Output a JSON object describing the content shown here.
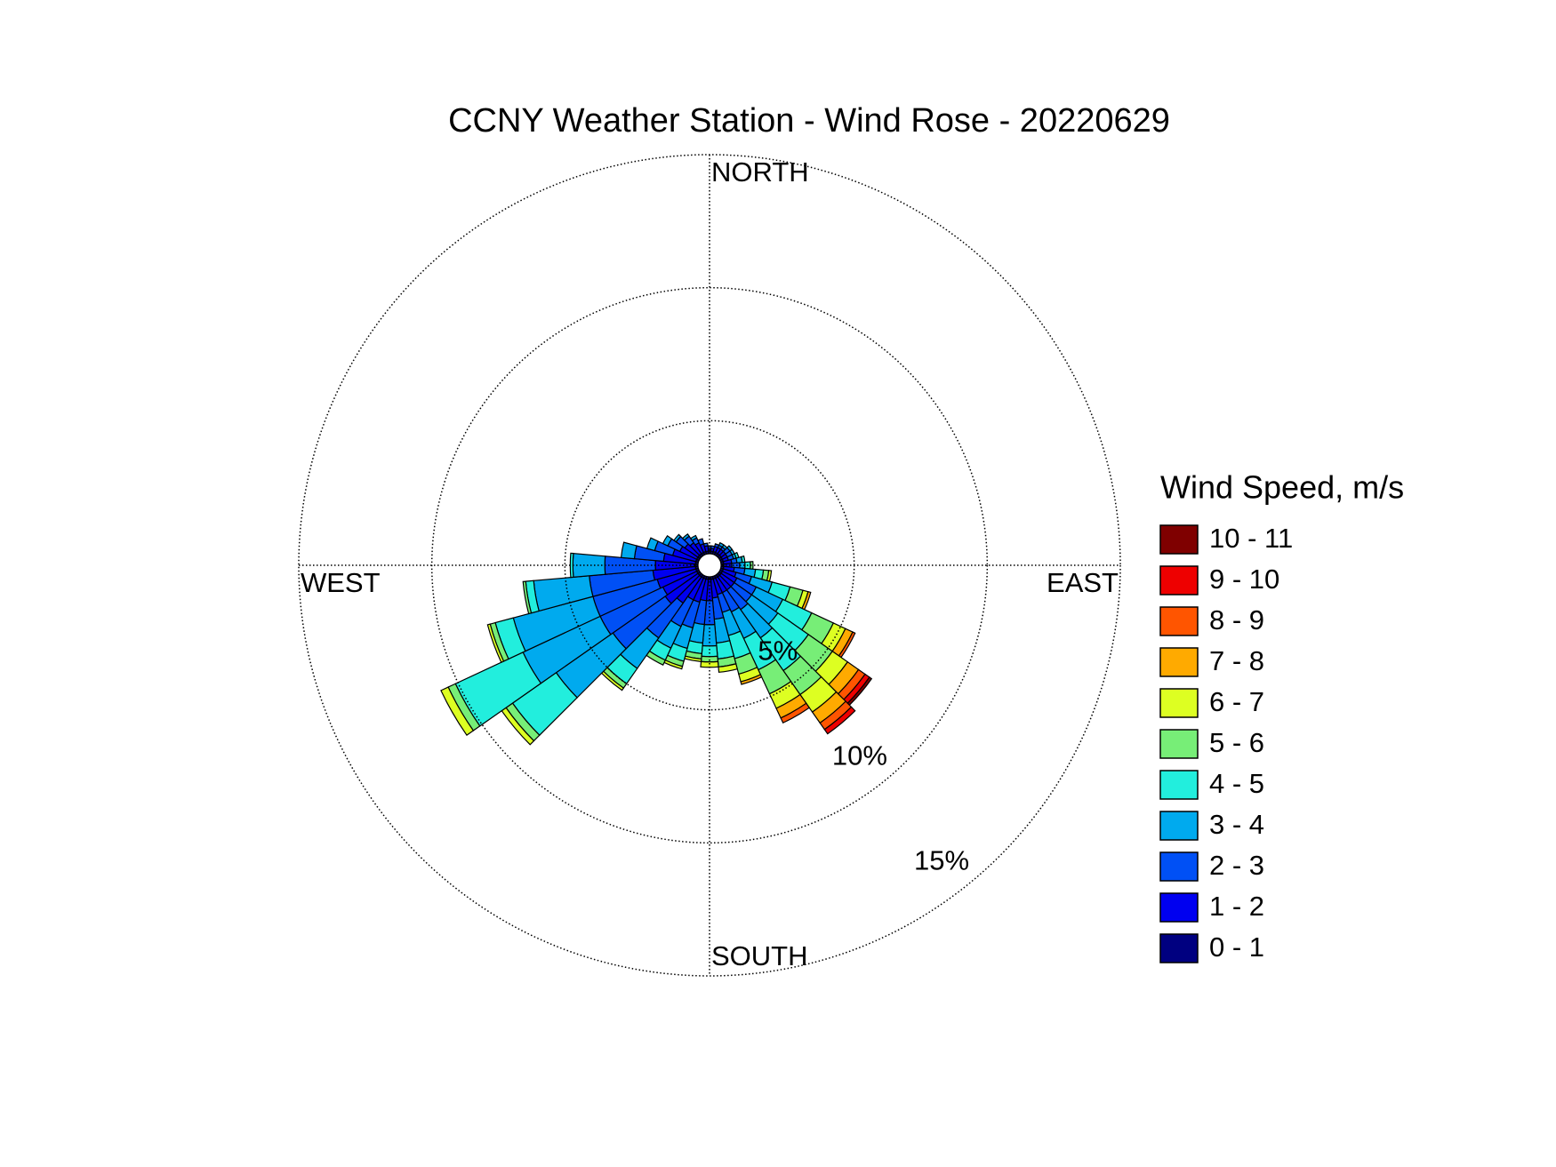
{
  "chart_data": {
    "type": "windrose",
    "title": "CCNY Weather Station - Wind Rose - 20220629",
    "compass": {
      "north": "NORTH",
      "east": "EAST",
      "south": "SOUTH",
      "west": "WEST"
    },
    "legend_title": "Wind Speed, m/s",
    "x": [
      0,
      10,
      20,
      30,
      40,
      50,
      60,
      70,
      80,
      90,
      100,
      110,
      120,
      130,
      140,
      150,
      160,
      170,
      180,
      190,
      200,
      210,
      220,
      230,
      240,
      250,
      260,
      270,
      280,
      290,
      300,
      310,
      320,
      330,
      340,
      350
    ],
    "rlim": [
      0,
      15
    ],
    "rticks": [
      {
        "value": 5,
        "label": "5%"
      },
      {
        "value": 10,
        "label": "10%"
      },
      {
        "value": 15,
        "label": "15%"
      }
    ],
    "grid": true,
    "legend": "right",
    "series": [
      {
        "name": "0 - 1",
        "color": "#000080",
        "values": [
          0.1,
          0.1,
          0.1,
          0.1,
          0.1,
          0.1,
          0.1,
          0.1,
          0.1,
          0.1,
          0.1,
          0.1,
          0.1,
          0.1,
          0.1,
          0.1,
          0.1,
          0.1,
          0.1,
          0.1,
          0.1,
          0.1,
          0.1,
          0.1,
          0.1,
          0.1,
          0.1,
          0.1,
          0.1,
          0.1,
          0.1,
          0.1,
          0.1,
          0.1,
          0.1,
          0.1
        ]
      },
      {
        "name": "1 - 2",
        "color": "#0000f0",
        "values": [
          0.1,
          0.1,
          0.2,
          0.2,
          0.2,
          0.2,
          0.2,
          0.2,
          0.3,
          0.3,
          0.4,
          0.5,
          0.6,
          0.6,
          0.6,
          0.6,
          0.6,
          0.7,
          0.8,
          0.8,
          0.9,
          0.9,
          1.2,
          1.5,
          1.4,
          1.5,
          1.6,
          1.5,
          1.2,
          0.9,
          0.7,
          0.6,
          0.5,
          0.4,
          0.3,
          0.2
        ]
      },
      {
        "name": "2 - 3",
        "color": "#0050f5",
        "values": [
          0.1,
          0.1,
          0.1,
          0.1,
          0.1,
          0.2,
          0.2,
          0.2,
          0.2,
          0.3,
          0.4,
          0.6,
          0.8,
          0.8,
          0.9,
          0.8,
          0.7,
          0.8,
          0.9,
          0.9,
          1.0,
          1.1,
          1.6,
          2.4,
          2.6,
          2.5,
          2.4,
          1.9,
          1.1,
          0.7,
          0.5,
          0.4,
          0.3,
          0.2,
          0.2,
          0.1
        ]
      },
      {
        "name": "3 - 4",
        "color": "#00aaee",
        "values": [
          0,
          0,
          0,
          0.1,
          0.1,
          0.1,
          0.1,
          0.1,
          0.2,
          0.2,
          0.4,
          0.8,
          1.1,
          1.2,
          1.3,
          1.1,
          0.9,
          0.9,
          0.8,
          0.7,
          0.8,
          0.9,
          1.4,
          2.6,
          3.2,
          3.1,
          2.1,
          1.2,
          0.5,
          0.3,
          0.2,
          0.1,
          0.1,
          0.1,
          0,
          0
        ]
      },
      {
        "name": "4 - 5",
        "color": "#22eedd",
        "values": [
          0,
          0,
          0,
          0,
          0,
          0,
          0,
          0.1,
          0.1,
          0.2,
          0.3,
          0.7,
          1.2,
          1.4,
          1.5,
          1.3,
          0.9,
          0.6,
          0.4,
          0.4,
          0.5,
          0.5,
          0.7,
          2.0,
          2.8,
          0.7,
          0.3,
          0.1,
          0,
          0,
          0,
          0,
          0,
          0,
          0,
          0
        ]
      },
      {
        "name": "5 - 6",
        "color": "#77ee77",
        "values": [
          0,
          0,
          0,
          0,
          0,
          0,
          0,
          0,
          0,
          0.1,
          0.2,
          0.5,
          0.9,
          1.1,
          1.1,
          1.0,
          0.6,
          0.3,
          0.2,
          0.2,
          0.2,
          0.2,
          0.2,
          0.3,
          0.3,
          0.2,
          0.1,
          0,
          0,
          0,
          0,
          0,
          0,
          0,
          0,
          0
        ]
      },
      {
        "name": "6 - 7",
        "color": "#ddff22",
        "values": [
          0,
          0,
          0,
          0,
          0,
          0,
          0,
          0,
          0,
          0,
          0.1,
          0.2,
          0.5,
          0.7,
          0.8,
          0.6,
          0.3,
          0.2,
          0.2,
          0.1,
          0.1,
          0,
          0.1,
          0.2,
          0.3,
          0.1,
          0,
          0,
          0,
          0,
          0,
          0,
          0,
          0,
          0,
          0
        ]
      },
      {
        "name": "7 - 8",
        "color": "#ffaa00",
        "values": [
          0,
          0,
          0,
          0,
          0,
          0,
          0,
          0,
          0,
          0,
          0,
          0.1,
          0.3,
          0.5,
          0.5,
          0.4,
          0.1,
          0,
          0,
          0,
          0,
          0,
          0,
          0,
          0,
          0,
          0,
          0,
          0,
          0,
          0,
          0,
          0,
          0,
          0,
          0
        ]
      },
      {
        "name": "8 - 9",
        "color": "#ff5500",
        "values": [
          0,
          0,
          0,
          0,
          0,
          0,
          0,
          0,
          0,
          0,
          0,
          0,
          0.1,
          0.3,
          0.3,
          0.2,
          0,
          0,
          0,
          0,
          0,
          0,
          0,
          0,
          0,
          0,
          0,
          0,
          0,
          0,
          0,
          0,
          0,
          0,
          0,
          0
        ]
      },
      {
        "name": "9 - 10",
        "color": "#ee0000",
        "values": [
          0,
          0,
          0,
          0,
          0,
          0,
          0,
          0,
          0,
          0,
          0,
          0,
          0,
          0.2,
          0.2,
          0,
          0,
          0,
          0,
          0,
          0,
          0,
          0,
          0,
          0,
          0,
          0,
          0,
          0,
          0,
          0,
          0,
          0,
          0,
          0,
          0
        ]
      },
      {
        "name": "10 - 11",
        "color": "#7f0000",
        "values": [
          0,
          0,
          0,
          0,
          0,
          0,
          0,
          0,
          0,
          0,
          0,
          0,
          0,
          0.1,
          0,
          0,
          0,
          0,
          0,
          0,
          0,
          0,
          0,
          0,
          0,
          0,
          0,
          0,
          0,
          0,
          0,
          0,
          0,
          0,
          0,
          0
        ]
      }
    ]
  }
}
